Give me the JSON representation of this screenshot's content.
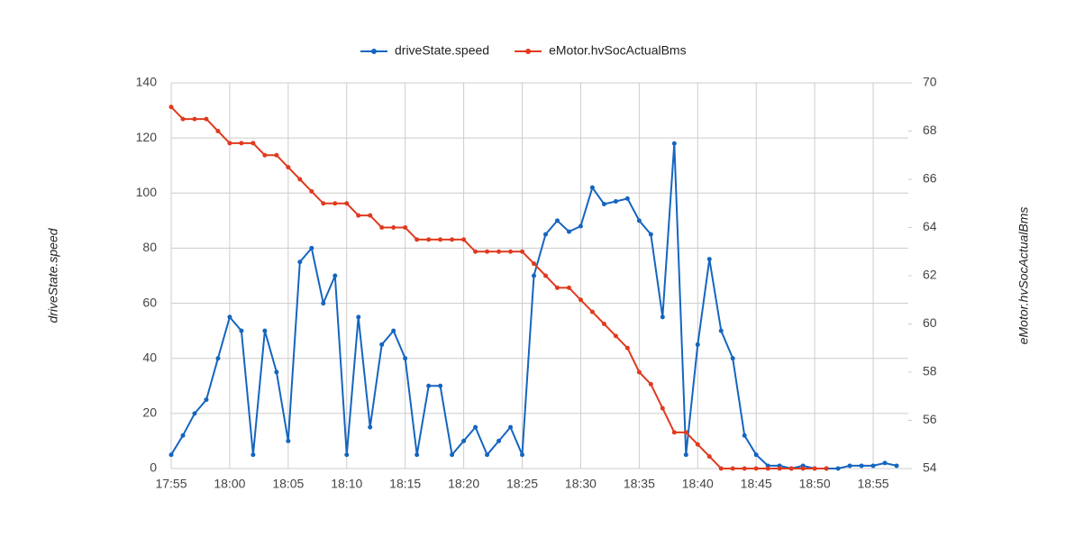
{
  "chart_data": {
    "type": "line",
    "legend_position": "top",
    "y_label": "driveState.speed",
    "y2_label": "eMotor.hvSocActualBms",
    "x": [
      "17:55",
      "17:56",
      "17:57",
      "17:58",
      "17:59",
      "18:00",
      "18:01",
      "18:02",
      "18:03",
      "18:04",
      "18:05",
      "18:06",
      "18:07",
      "18:08",
      "18:09",
      "18:10",
      "18:11",
      "18:12",
      "18:13",
      "18:14",
      "18:15",
      "18:16",
      "18:17",
      "18:18",
      "18:19",
      "18:20",
      "18:21",
      "18:22",
      "18:23",
      "18:24",
      "18:25",
      "18:26",
      "18:27",
      "18:28",
      "18:29",
      "18:30",
      "18:31",
      "18:32",
      "18:33",
      "18:34",
      "18:35",
      "18:36",
      "18:37",
      "18:38",
      "18:39",
      "18:40",
      "18:41",
      "18:42",
      "18:43",
      "18:44",
      "18:45",
      "18:46",
      "18:47",
      "18:48",
      "18:49",
      "18:50",
      "18:51",
      "18:52",
      "18:53",
      "18:54",
      "18:55",
      "18:56",
      "18:57"
    ],
    "series": [
      {
        "name": "driveState.speed",
        "color": "#1565c0",
        "axis": "y",
        "values": [
          5,
          12,
          20,
          25,
          40,
          55,
          50,
          5,
          50,
          35,
          10,
          75,
          80,
          60,
          70,
          5,
          55,
          15,
          45,
          50,
          40,
          5,
          30,
          30,
          5,
          10,
          15,
          5,
          10,
          15,
          5,
          70,
          85,
          90,
          86,
          88,
          102,
          96,
          97,
          98,
          90,
          85,
          55,
          118,
          5,
          45,
          76,
          50,
          40,
          12,
          5,
          1,
          1,
          0,
          1,
          0,
          0,
          0,
          1,
          1,
          1,
          2,
          1
        ]
      },
      {
        "name": "eMotor.hvSocActualBms",
        "color": "#e03a1e",
        "axis": "y2",
        "values": [
          69,
          68.5,
          68.5,
          68.5,
          68,
          67.5,
          67.5,
          67.5,
          67,
          67,
          66.5,
          66,
          65.5,
          65,
          65,
          65,
          64.5,
          64.5,
          64,
          64,
          64,
          63.5,
          63.5,
          63.5,
          63.5,
          63.5,
          63,
          63,
          63,
          63,
          63,
          62.5,
          62,
          61.5,
          61.5,
          61,
          60.5,
          60,
          59.5,
          59,
          58,
          57.5,
          56.5,
          55.5,
          55.5,
          55,
          54.5,
          54,
          54,
          54,
          54,
          54,
          54,
          54,
          54,
          54,
          54,
          null,
          null,
          null,
          null,
          null,
          null
        ]
      }
    ],
    "xlim": [
      "17:55",
      "18:58"
    ],
    "xticks": [
      "17:55",
      "18:00",
      "18:05",
      "18:10",
      "18:15",
      "18:20",
      "18:25",
      "18:30",
      "18:35",
      "18:40",
      "18:45",
      "18:50",
      "18:55"
    ],
    "ylim": [
      0,
      140
    ],
    "yticks": [
      0,
      20,
      40,
      60,
      80,
      100,
      120,
      140
    ],
    "y2lim": [
      54,
      70
    ],
    "y2ticks": [
      54,
      56,
      58,
      60,
      62,
      64,
      66,
      68,
      70
    ],
    "grid": true
  }
}
